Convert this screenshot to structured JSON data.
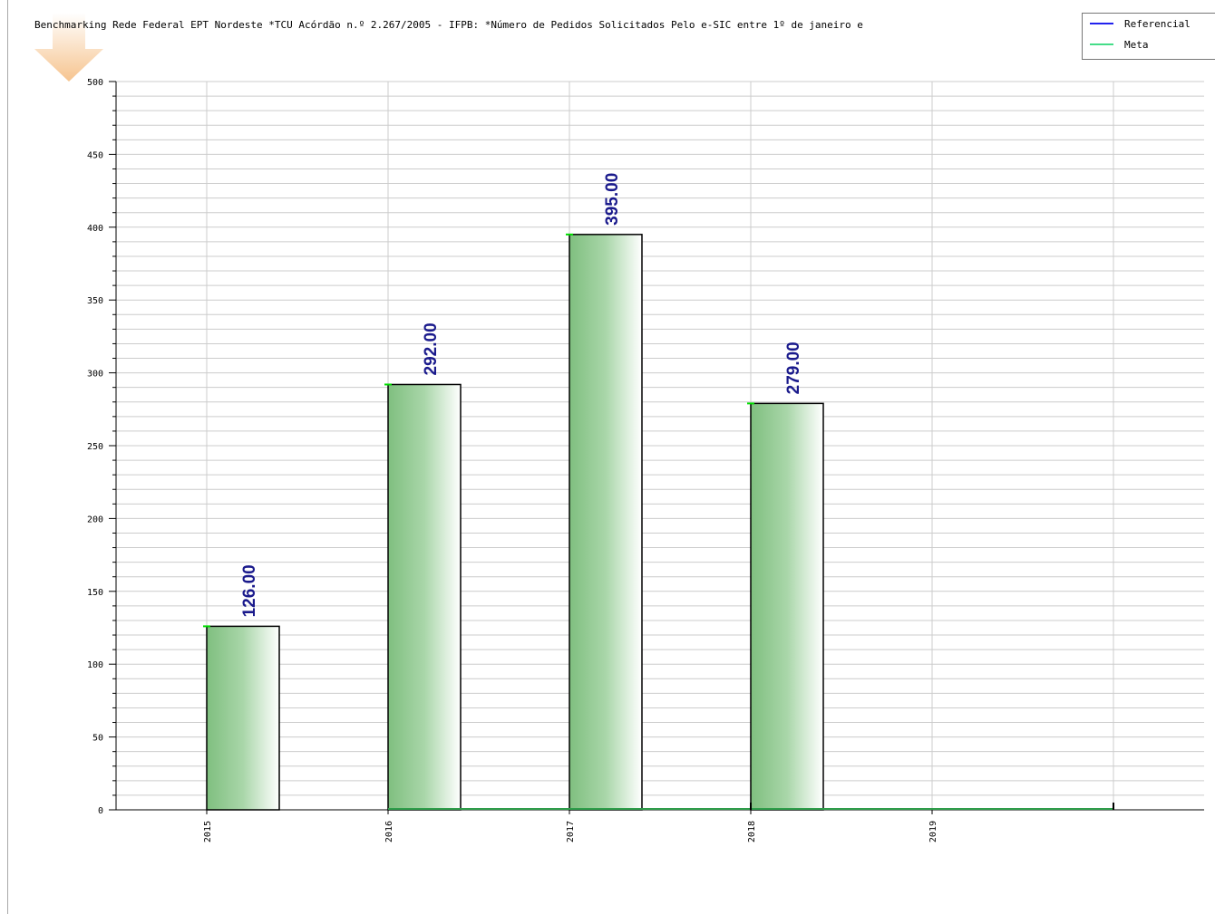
{
  "colors": {
    "bar_dark": "#7fbf7f",
    "bar_light": "#ffffff",
    "bar_border": "#000000",
    "value_label": "#1a1a8c",
    "grid": "#cccccc",
    "meta_line": "#2e9e4a",
    "marker": "#00dd00",
    "referencial": "#2222ee",
    "meta": "#44dd88",
    "arrow": "#f6c48f"
  },
  "legend": [
    {
      "label": "Referencial",
      "color": "#2222ee"
    },
    {
      "label": "Meta",
      "color": "#44dd88"
    }
  ],
  "chart_data": {
    "type": "bar",
    "title": "Benchmarking Rede Federal EPT Nordeste *TCU Acórdão n.º 2.267/2005 - IFPB: *Número de Pedidos Solicitados Pelo e-SIC entre 1º de janeiro e",
    "categories": [
      "2015",
      "2016",
      "2017",
      "2018",
      "2019"
    ],
    "series": [
      {
        "name": "",
        "values": [
          126,
          292,
          395,
          279,
          null
        ]
      }
    ],
    "value_labels": [
      "126.00",
      "292.00",
      "395.00",
      "279.00",
      ""
    ],
    "ylim": [
      0,
      500
    ],
    "yticks": [
      "0",
      "50",
      "100",
      "150",
      "200",
      "250",
      "300",
      "350",
      "400",
      "450",
      "500"
    ],
    "grid": true,
    "legend_position": "top-right"
  }
}
